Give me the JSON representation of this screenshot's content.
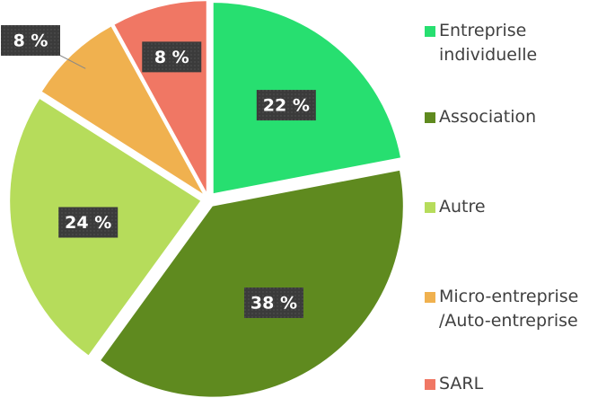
{
  "chart_data": {
    "type": "pie",
    "categories": [
      "Entreprise individuelle",
      "Association",
      "Autre",
      "Micro-entreprise /Auto-entreprise",
      "SARL"
    ],
    "values": [
      22,
      38,
      24,
      8,
      8
    ],
    "value_labels": [
      "22 %",
      "38 %",
      "24 %",
      "8 %",
      "8 %"
    ],
    "colors": [
      "#27df70",
      "#5f8a1f",
      "#b6dc5b",
      "#f0b14f",
      "#f07764"
    ],
    "legend": "right"
  }
}
